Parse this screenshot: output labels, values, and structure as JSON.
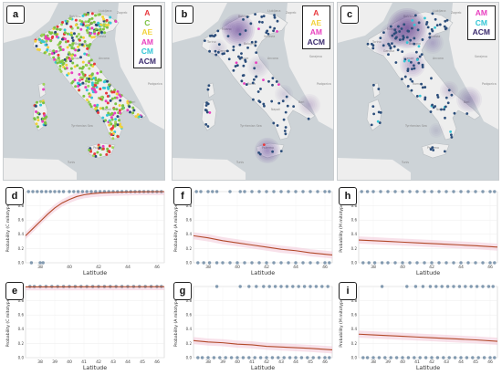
{
  "figure": {
    "panels_maps": [
      {
        "label": "a",
        "legend": [
          {
            "text": "A",
            "color": "#e8383d"
          },
          {
            "text": "C",
            "color": "#7cc242"
          },
          {
            "text": "AE",
            "color": "#f2d23a"
          },
          {
            "text": "AM",
            "color": "#e83fbf"
          },
          {
            "text": "CM",
            "color": "#34c6d6"
          },
          {
            "text": "ACM",
            "color": "#3a2a6e"
          }
        ]
      },
      {
        "label": "b",
        "legend": [
          {
            "text": "A",
            "color": "#e8383d"
          },
          {
            "text": "AE",
            "color": "#f2d23a"
          },
          {
            "text": "AM",
            "color": "#e83fbf"
          },
          {
            "text": "ACM",
            "color": "#3a2a6e"
          }
        ]
      },
      {
        "label": "c",
        "legend": [
          {
            "text": "AM",
            "color": "#e83fbf"
          },
          {
            "text": "CM",
            "color": "#34c6d6"
          },
          {
            "text": "ACM",
            "color": "#3a2a6e"
          }
        ]
      }
    ],
    "map_place_labels": [
      "Zagreb",
      "Ljubljana",
      "Bolzano",
      "Venezia",
      "Milano",
      "Torino",
      "Genova",
      "Bologna",
      "Firenze",
      "Ancona",
      "Roma",
      "Napoli",
      "Bari",
      "Tyrrhenian Sea",
      "Palermo",
      "Tunis",
      "Sarajevo",
      "Podgorica"
    ],
    "colors": {
      "map_bg": "#d9dde0",
      "land": "#eeeeee",
      "sea": "#cdd3d7",
      "heat": "#5b2d8e",
      "point_blue": "#2b4d7a",
      "curve": "#b24a2a",
      "scatter": "#6f8aa3",
      "band": "#f2c9d8"
    }
  },
  "chart_data": [
    {
      "panel": "d",
      "type": "scatter",
      "xlabel": "Latitude",
      "ylabel": "Probability (C mitotype)",
      "xlim": [
        37,
        46.5
      ],
      "ylim": [
        0,
        1
      ],
      "xticks": [
        38,
        40,
        42,
        44,
        46
      ],
      "yticks": [
        0,
        0.2,
        0.4,
        0.6,
        0.8,
        1.0
      ],
      "xticklabels": [
        "38",
        "40",
        "42",
        "44",
        "46"
      ],
      "yticklabels": [
        "0.0",
        "0.2",
        "0.4",
        "0.6",
        "0.8",
        "1.0"
      ],
      "series": [
        {
          "type": "logistic_fit",
          "x": [
            37,
            37.5,
            38,
            38.5,
            39,
            39.5,
            40,
            40.5,
            41,
            41.5,
            42,
            43,
            44,
            45,
            46.5
          ],
          "values": [
            0.38,
            0.48,
            0.58,
            0.68,
            0.77,
            0.84,
            0.89,
            0.93,
            0.955,
            0.97,
            0.98,
            0.99,
            0.995,
            0.998,
            1.0
          ]
        }
      ],
      "points_y1_x": [
        37.2,
        37.5,
        37.8,
        38.1,
        38.4,
        38.7,
        39,
        39.3,
        39.6,
        40,
        40.3,
        40.6,
        40.9,
        41.2,
        41.5,
        41.8,
        42.1,
        42.4,
        42.7,
        43,
        43.3,
        43.6,
        43.9,
        44.2,
        44.5,
        44.8,
        45.1,
        45.4,
        45.7,
        46,
        46.3
      ],
      "points_y0_x": [
        37.4,
        38.0,
        38.2
      ]
    },
    {
      "panel": "e",
      "type": "scatter",
      "xlabel": "Latitude",
      "ylabel": "Probability (C mitotype)",
      "xlim": [
        37,
        46.5
      ],
      "ylim": [
        0,
        1
      ],
      "xticks": [
        38,
        39,
        40,
        41,
        42,
        43,
        44,
        45,
        46
      ],
      "yticks": [
        0,
        0.2,
        0.4,
        0.6,
        0.8,
        1.0
      ],
      "xticklabels": [
        "38",
        "39",
        "40",
        "41",
        "42",
        "43",
        "44",
        "45",
        "46"
      ],
      "yticklabels": [
        "0.0",
        "0.2",
        "0.4",
        "0.6",
        "0.8",
        "1.0"
      ],
      "series": [
        {
          "type": "logistic_fit",
          "x": [
            37,
            46.5
          ],
          "values": [
            0.995,
            0.998
          ]
        }
      ],
      "points_y1_x": [
        37.3,
        37.6,
        38,
        38.4,
        38.8,
        39.2,
        39.6,
        40,
        40.4,
        40.8,
        41.2,
        41.6,
        42,
        42.4,
        42.8,
        43.2,
        43.6,
        44,
        44.4,
        44.8,
        45.2,
        45.6,
        46,
        46.3
      ],
      "points_y0_x": []
    },
    {
      "panel": "f",
      "type": "scatter",
      "xlabel": "Latitude",
      "ylabel": "Probability (A mitotype)",
      "xlim": [
        37,
        46.5
      ],
      "ylim": [
        0,
        1
      ],
      "xticks": [
        38,
        40,
        42,
        44,
        46
      ],
      "yticks": [
        0,
        0.2,
        0.4,
        0.6,
        0.8,
        1.0
      ],
      "xticklabels": [
        "38",
        "40",
        "42",
        "44",
        "46"
      ],
      "yticklabels": [
        "0.0",
        "0.2",
        "0.4",
        "0.6",
        "0.8",
        "1.0"
      ],
      "series": [
        {
          "type": "logistic_fit",
          "x": [
            37,
            38,
            39,
            40,
            41,
            42,
            43,
            44,
            45,
            46.5
          ],
          "values": [
            0.38,
            0.35,
            0.31,
            0.28,
            0.25,
            0.22,
            0.19,
            0.17,
            0.14,
            0.11
          ]
        }
      ],
      "points_y1_x": [
        37.2,
        37.5,
        38,
        38.3,
        38.6,
        39.5,
        40.2,
        40.5,
        41,
        41.5,
        42,
        42.5,
        43,
        43.5,
        44,
        44.5,
        45,
        45.5,
        46,
        46.3
      ],
      "points_y0_x": [
        37.3,
        37.7,
        38.1,
        38.6,
        39,
        39.5,
        40,
        40.5,
        41,
        41.5,
        42,
        42.5,
        43,
        43.5,
        44,
        44.5,
        45,
        45.5,
        46,
        46.3
      ]
    },
    {
      "panel": "g",
      "type": "scatter",
      "xlabel": "Latitude",
      "ylabel": "Probability (A mitotype)",
      "xlim": [
        37,
        46.5
      ],
      "ylim": [
        0,
        1
      ],
      "xticks": [
        38,
        39,
        40,
        41,
        42,
        43,
        44,
        45,
        46
      ],
      "yticks": [
        0,
        0.2,
        0.4,
        0.6,
        0.8,
        1.0
      ],
      "xticklabels": [
        "38",
        "39",
        "40",
        "41",
        "42",
        "43",
        "44",
        "45",
        "46"
      ],
      "yticklabels": [
        "0.0",
        "0.2",
        "0.4",
        "0.6",
        "0.8",
        "1.0"
      ],
      "series": [
        {
          "type": "logistic_fit",
          "x": [
            37,
            38,
            39,
            40,
            41,
            42,
            43,
            44,
            45,
            46.5
          ],
          "values": [
            0.24,
            0.22,
            0.21,
            0.19,
            0.18,
            0.16,
            0.15,
            0.14,
            0.13,
            0.11
          ]
        }
      ],
      "points_y1_x": [
        38.6,
        40.2,
        40.8,
        41.3,
        41.8,
        42.2,
        42.6,
        43,
        43.4,
        43.8,
        44.2,
        44.6,
        45,
        45.4,
        45.8,
        46.2
      ],
      "points_y0_x": [
        37.3,
        37.6,
        38,
        38.4,
        38.8,
        39.2,
        39.6,
        40,
        40.4,
        40.8,
        41.2,
        41.6,
        42,
        42.4,
        42.8,
        43.2,
        43.6,
        44,
        44.4,
        44.8,
        45.2,
        45.6,
        46,
        46.3
      ]
    },
    {
      "panel": "h",
      "type": "scatter",
      "xlabel": "Latitude",
      "ylabel": "Probability (M mitotype)",
      "xlim": [
        37,
        46.5
      ],
      "ylim": [
        0,
        1
      ],
      "xticks": [
        38,
        40,
        42,
        44,
        46
      ],
      "yticks": [
        0,
        0.2,
        0.4,
        0.6,
        0.8,
        1.0
      ],
      "xticklabels": [
        "38",
        "40",
        "42",
        "44",
        "46"
      ],
      "yticklabels": [
        "0.0",
        "0.2",
        "0.4",
        "0.6",
        "0.8",
        "1.0"
      ],
      "series": [
        {
          "type": "logistic_fit",
          "x": [
            37,
            38,
            39,
            40,
            41,
            42,
            43,
            44,
            45,
            46.5
          ],
          "values": [
            0.32,
            0.31,
            0.3,
            0.29,
            0.28,
            0.27,
            0.26,
            0.25,
            0.24,
            0.22
          ]
        }
      ],
      "points_y1_x": [
        37.2,
        37.6,
        38,
        38.5,
        39,
        39.5,
        40,
        40.5,
        41,
        41.5,
        42,
        42.5,
        43,
        43.5,
        44,
        44.5,
        45,
        45.5,
        46,
        46.3
      ],
      "points_y0_x": [
        37.3,
        37.7,
        38.1,
        38.6,
        39,
        39.5,
        40,
        40.5,
        41,
        41.5,
        42,
        42.5,
        43,
        43.5,
        44,
        44.5,
        45,
        45.5,
        46,
        46.3
      ]
    },
    {
      "panel": "i",
      "type": "scatter",
      "xlabel": "Latitude",
      "ylabel": "Probability (M mitotype)",
      "xlim": [
        37,
        46.5
      ],
      "ylim": [
        0,
        1
      ],
      "xticks": [
        38,
        39,
        40,
        41,
        42,
        43,
        44,
        45,
        46
      ],
      "yticks": [
        0,
        0.2,
        0.4,
        0.6,
        0.8,
        1.0
      ],
      "xticklabels": [
        "38",
        "39",
        "40",
        "41",
        "42",
        "43",
        "44",
        "45",
        "46"
      ],
      "yticklabels": [
        "0.0",
        "0.2",
        "0.4",
        "0.6",
        "0.8",
        "1.0"
      ],
      "series": [
        {
          "type": "logistic_fit",
          "x": [
            37,
            38,
            39,
            40,
            41,
            42,
            43,
            44,
            45,
            46.5
          ],
          "values": [
            0.33,
            0.32,
            0.31,
            0.3,
            0.29,
            0.28,
            0.27,
            0.26,
            0.25,
            0.23
          ]
        }
      ],
      "points_y1_x": [
        38.6,
        40.3,
        40.9,
        41.4,
        41.9,
        42.3,
        42.7,
        43.1,
        43.5,
        43.9,
        44.3,
        44.7,
        45.1,
        45.5,
        45.9,
        46.2
      ],
      "points_y0_x": [
        37.3,
        37.6,
        38,
        38.4,
        38.8,
        39.2,
        39.6,
        40,
        40.4,
        40.8,
        41.2,
        41.6,
        42,
        42.4,
        42.8,
        43.2,
        43.6,
        44,
        44.4,
        44.8,
        45.2,
        45.6,
        46,
        46.3
      ]
    }
  ]
}
